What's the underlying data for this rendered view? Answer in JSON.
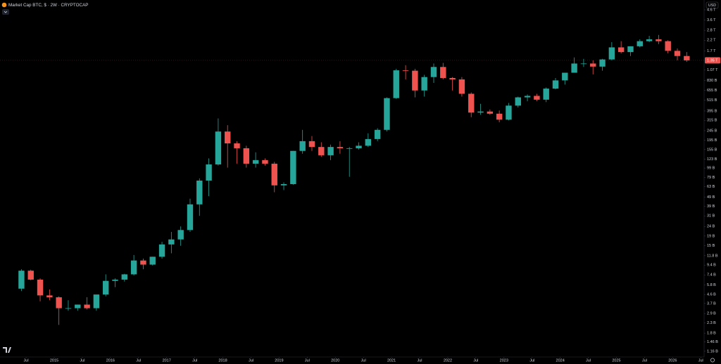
{
  "chart_data": {
    "type": "candlestick",
    "title": "Market Cap BTC, $ · 2W · CRYPTOCAP",
    "currency": "USD",
    "log_scale": true,
    "up_color": "#26a69a",
    "down_color": "#ef5350",
    "x": [
      "2014-05",
      "2014-07",
      "2014-09",
      "2014-11",
      "2015-01",
      "2015-03",
      "2015-05",
      "2015-07",
      "2015-09",
      "2015-11",
      "2016-01",
      "2016-03",
      "2016-05",
      "2016-07",
      "2016-09",
      "2016-11",
      "2017-01",
      "2017-03",
      "2017-05",
      "2017-07",
      "2017-09",
      "2017-11",
      "2018-01",
      "2018-03",
      "2018-05",
      "2018-07",
      "2018-09",
      "2018-11",
      "2019-01",
      "2019-03",
      "2019-05",
      "2019-07",
      "2019-09",
      "2019-11",
      "2020-01",
      "2020-03",
      "2020-05",
      "2020-07",
      "2020-09",
      "2020-11",
      "2021-01",
      "2021-03",
      "2021-05",
      "2021-07",
      "2021-09",
      "2021-11",
      "2022-01",
      "2022-03",
      "2022-05",
      "2022-07",
      "2022-09",
      "2022-11",
      "2023-01",
      "2023-03",
      "2023-05",
      "2023-07",
      "2023-09",
      "2023-11",
      "2024-01",
      "2024-03",
      "2024-05",
      "2024-07",
      "2024-09",
      "2024-11",
      "2025-01",
      "2025-03",
      "2025-05",
      "2025-07",
      "2025-09",
      "2025-11",
      "2026-01",
      "2026-03"
    ],
    "open": [
      5.3,
      8.2,
      6.6,
      4.5,
      4.3,
      3.3,
      3.3,
      3.6,
      3.3,
      4.6,
      6.4,
      6.6,
      7.5,
      10.5,
      9.5,
      11.5,
      15.5,
      17.5,
      22,
      41,
      73,
      108,
      240,
      180,
      160,
      110,
      120,
      110,
      65,
      67,
      150,
      190,
      165,
      135,
      165,
      160,
      160,
      170,
      200,
      250,
      540,
      1060,
      1050,
      650,
      900,
      1150,
      880,
      850,
      600,
      380,
      390,
      370,
      320,
      450,
      550,
      570,
      520,
      680,
      830,
      1000,
      1250,
      1250,
      1160,
      1380,
      1850,
      1650,
      1900,
      2150,
      2250,
      2150,
      1700,
      1500
    ],
    "high": [
      8.5,
      8.4,
      6.8,
      5.2,
      4.4,
      4.0,
      3.6,
      4.3,
      3.6,
      7.5,
      6.8,
      7.6,
      12.0,
      11.0,
      11.5,
      16.5,
      21,
      24,
      47,
      77,
      125,
      330,
      280,
      190,
      170,
      145,
      125,
      115,
      70,
      150,
      250,
      215,
      185,
      175,
      190,
      165,
      185,
      230,
      260,
      550,
      1100,
      1200,
      1100,
      950,
      1250,
      1270,
      900,
      900,
      620,
      470,
      410,
      400,
      480,
      560,
      590,
      600,
      700,
      880,
      1000,
      1450,
      1400,
      1350,
      1400,
      2100,
      2150,
      1900,
      2250,
      2450,
      2500,
      2200,
      1800,
      1650
    ],
    "low": [
      5.0,
      6.5,
      3.9,
      4.0,
      2.2,
      3.1,
      3.1,
      3.2,
      3.1,
      4.4,
      5.5,
      6.3,
      7.3,
      8.5,
      9.3,
      11.0,
      12.5,
      15,
      21,
      31,
      50,
      105,
      100,
      110,
      100,
      100,
      105,
      55,
      58,
      66,
      140,
      150,
      130,
      120,
      140,
      80,
      155,
      165,
      190,
      240,
      530,
      850,
      550,
      560,
      780,
      850,
      650,
      560,
      340,
      360,
      360,
      300,
      315,
      430,
      500,
      500,
      490,
      670,
      750,
      1000,
      1150,
      960,
      1050,
      1350,
      1600,
      1500,
      1850,
      2100,
      2000,
      1600,
      1350,
      1300
    ],
    "close": [
      8.2,
      6.6,
      4.5,
      4.3,
      3.3,
      3.3,
      3.6,
      3.3,
      4.6,
      6.4,
      6.6,
      7.5,
      10.5,
      9.5,
      11.5,
      15.5,
      17.5,
      22,
      41,
      73,
      108,
      240,
      180,
      160,
      110,
      120,
      110,
      65,
      67,
      150,
      190,
      165,
      135,
      165,
      160,
      160,
      170,
      200,
      250,
      540,
      1060,
      1050,
      650,
      900,
      1150,
      880,
      850,
      600,
      380,
      390,
      370,
      320,
      450,
      550,
      570,
      520,
      680,
      830,
      1000,
      1250,
      1250,
      1160,
      1380,
      1850,
      1650,
      1900,
      2150,
      2250,
      2150,
      1700,
      1500,
      1350
    ],
    "last_price_label": "1.35 T",
    "ylim": [
      1.01,
      5840
    ],
    "yticks": [
      {
        "value": 4600,
        "label": "4.6 T"
      },
      {
        "value": 3600,
        "label": "3.6 T"
      },
      {
        "value": 2800,
        "label": "2.8 T"
      },
      {
        "value": 2200,
        "label": "2.2 T"
      },
      {
        "value": 1700,
        "label": "1.7 T"
      },
      {
        "value": 1070,
        "label": "1.07 T"
      },
      {
        "value": 830,
        "label": "830 B"
      },
      {
        "value": 655,
        "label": "655 B"
      },
      {
        "value": 515,
        "label": "515 B"
      },
      {
        "value": 395,
        "label": "395 B"
      },
      {
        "value": 315,
        "label": "315 B"
      },
      {
        "value": 245,
        "label": "245 B"
      },
      {
        "value": 195,
        "label": "195 B"
      },
      {
        "value": 155,
        "label": "155 B"
      },
      {
        "value": 123,
        "label": "123 B"
      },
      {
        "value": 99,
        "label": "99 B"
      },
      {
        "value": 79,
        "label": "79 B"
      },
      {
        "value": 63,
        "label": "63 B"
      },
      {
        "value": 49,
        "label": "49 B"
      },
      {
        "value": 39,
        "label": "39 B"
      },
      {
        "value": 31,
        "label": "31 B"
      },
      {
        "value": 24,
        "label": "24 B"
      },
      {
        "value": 19,
        "label": "19 B"
      },
      {
        "value": 15,
        "label": "15 B"
      },
      {
        "value": 11.8,
        "label": "11.8 B"
      },
      {
        "value": 9.4,
        "label": "9.4 B"
      },
      {
        "value": 7.4,
        "label": "7.4 B"
      },
      {
        "value": 5.8,
        "label": "5.8 B"
      },
      {
        "value": 4.6,
        "label": "4.6 B"
      },
      {
        "value": 3.7,
        "label": "3.7 B"
      },
      {
        "value": 2.9,
        "label": "2.9 B"
      },
      {
        "value": 2.3,
        "label": "2.3 B"
      },
      {
        "value": 1.8,
        "label": "1.8 B"
      },
      {
        "value": 1.46,
        "label": "1.46 B"
      },
      {
        "value": 1.16,
        "label": "1.16 B"
      }
    ],
    "xticks": [
      {
        "value": "2014-07",
        "label": "Jul"
      },
      {
        "value": "2015-01",
        "label": "2015"
      },
      {
        "value": "2015-07",
        "label": "Jul"
      },
      {
        "value": "2016-01",
        "label": "2016"
      },
      {
        "value": "2016-07",
        "label": "Jul"
      },
      {
        "value": "2017-01",
        "label": "2017"
      },
      {
        "value": "2017-07",
        "label": "Jul"
      },
      {
        "value": "2018-01",
        "label": "2018"
      },
      {
        "value": "2018-07",
        "label": "Jul"
      },
      {
        "value": "2019-01",
        "label": "2019"
      },
      {
        "value": "2019-07",
        "label": "Jul"
      },
      {
        "value": "2020-01",
        "label": "2020"
      },
      {
        "value": "2020-07",
        "label": "Jul"
      },
      {
        "value": "2021-01",
        "label": "2021"
      },
      {
        "value": "2021-07",
        "label": "Jul"
      },
      {
        "value": "2022-01",
        "label": "2022"
      },
      {
        "value": "2022-07",
        "label": "Jul"
      },
      {
        "value": "2023-01",
        "label": "2023"
      },
      {
        "value": "2023-07",
        "label": "Jul"
      },
      {
        "value": "2024-01",
        "label": "2024"
      },
      {
        "value": "2024-07",
        "label": "Jul"
      },
      {
        "value": "2025-01",
        "label": "2025"
      },
      {
        "value": "2025-07",
        "label": "Jul"
      },
      {
        "value": "2026-01",
        "label": "2026"
      },
      {
        "value": "2026-07",
        "label": "Jul"
      }
    ]
  }
}
